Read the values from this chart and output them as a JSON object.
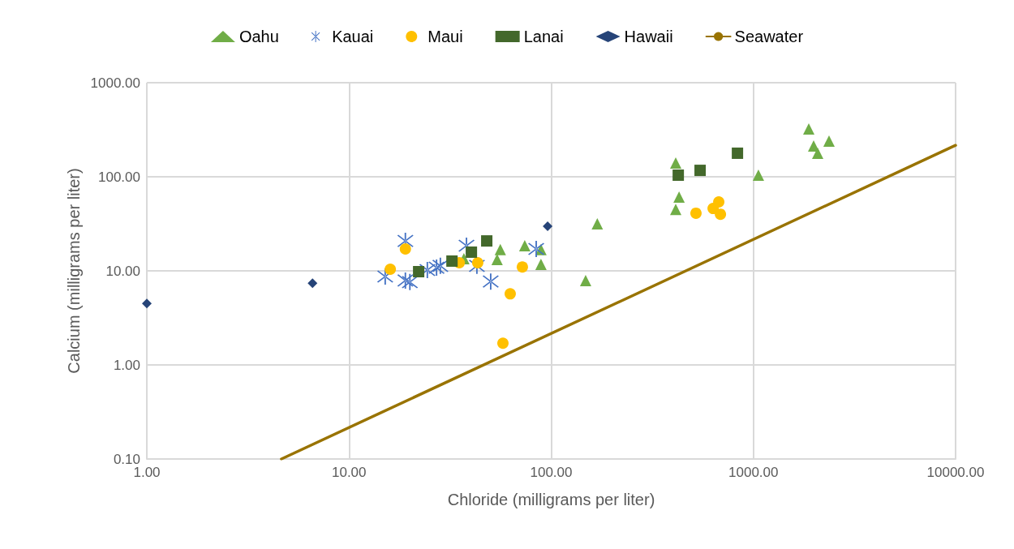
{
  "chart_data": {
    "type": "scatter",
    "xlabel": "Chloride (milligrams per liter)",
    "ylabel": "Calcium (milligrams per liter)",
    "log": "xy",
    "grid": true,
    "legend": "top",
    "xlim": [
      1,
      10000
    ],
    "xticks": [
      {
        "value": 1,
        "label": "1.00"
      },
      {
        "value": 10,
        "label": "10.00"
      },
      {
        "value": 100,
        "label": "100.00"
      },
      {
        "value": 1000,
        "label": "1000.00"
      },
      {
        "value": 10000,
        "label": "10000.00"
      }
    ],
    "ylim": [
      0.1,
      1000
    ],
    "yticks": [
      {
        "value": 0.1,
        "label": "0.10"
      },
      {
        "value": 1,
        "label": "1.00"
      },
      {
        "value": 10,
        "label": "10.00"
      },
      {
        "value": 100,
        "label": "100.00"
      },
      {
        "value": 1000,
        "label": "1000.00"
      }
    ],
    "series": [
      {
        "name": "Oahu",
        "color": "#70ad47",
        "marker": "triangle",
        "x": [
          null,
          56,
          54,
          74,
          89,
          89,
          null,
          37,
          148,
          169,
          413,
          429,
          413,
          1059,
          1879,
          1986,
          2080,
          2366
        ],
        "values": [
          null,
          16.8,
          13.2,
          18.5,
          16.8,
          11.7,
          null,
          13.5,
          7.9,
          31.6,
          140,
          61,
          45,
          104,
          323,
          213,
          178,
          240
        ]
      },
      {
        "name": "Kauai",
        "color": "#4472c4",
        "marker": "cross",
        "x": [
          15.1,
          19,
          19,
          20,
          null,
          24.4,
          27.1,
          28.3,
          38.1,
          42.9,
          50.2,
          84.3
        ],
        "values": [
          8.7,
          20.8,
          7.9,
          7.6,
          null,
          10.2,
          10.8,
          11.3,
          18.5,
          11.3,
          7.7,
          17.1
        ]
      },
      {
        "name": "Maui",
        "color": "#ffc000",
        "marker": "circle",
        "x": [
          16,
          19,
          35.1,
          null,
          43.3,
          72,
          62.7,
          57.7,
          520,
          632,
          674,
          687
        ],
        "values": [
          10.4,
          17.1,
          12.2,
          null,
          12.2,
          11,
          5.7,
          1.7,
          41,
          46,
          54,
          40
        ]
      },
      {
        "name": "Lanai",
        "color": "#43682b",
        "marker": "square",
        "x": [
          22.1,
          32.3,
          40.3,
          48,
          425,
          545,
          834
        ],
        "values": [
          9.8,
          12.7,
          15.8,
          20.8,
          104,
          117,
          178
        ]
      },
      {
        "name": "Hawaii",
        "color": "#264478",
        "marker": "diamond",
        "x": [
          1,
          6.6,
          96
        ],
        "values": [
          4.5,
          7.4,
          29.8
        ]
      },
      {
        "name": "Seawater",
        "color": "#997300",
        "type": "line",
        "marker": "none",
        "line_style": "solid",
        "x": [
          4.63,
          10000
        ],
        "values": [
          0.1,
          216
        ]
      }
    ]
  }
}
